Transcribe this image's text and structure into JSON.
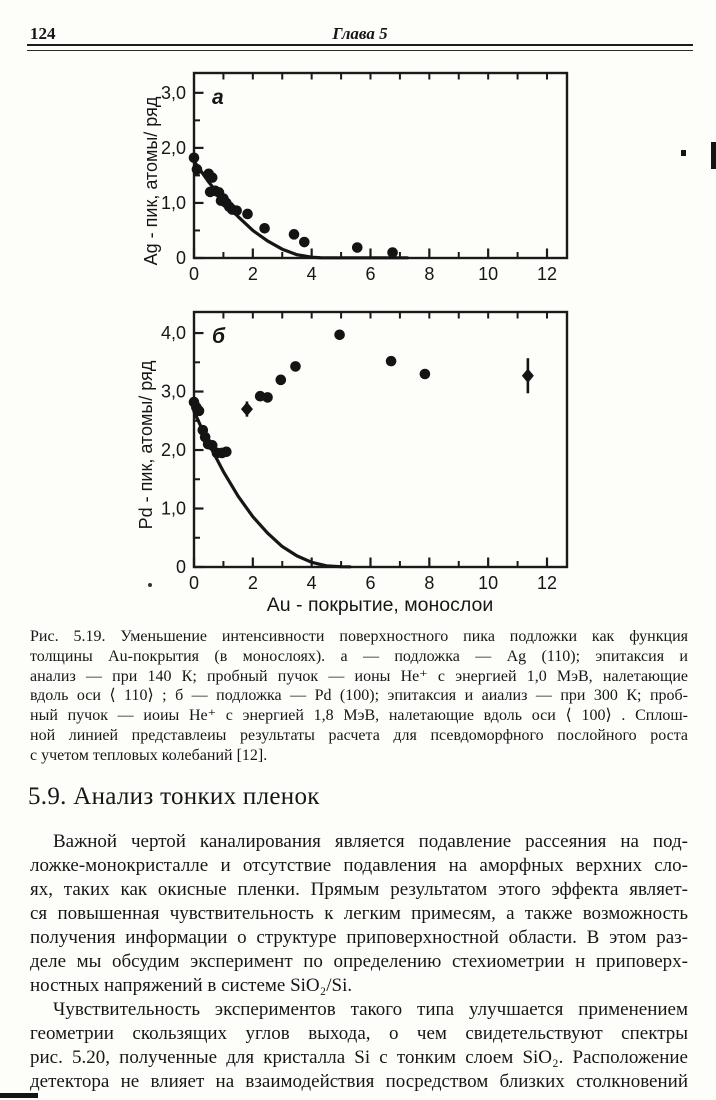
{
  "page": {
    "number": "124",
    "chapter": "Глава 5"
  },
  "colors": {
    "ink": "#1a1a1a",
    "paper": "#fdfdfa"
  },
  "chart_data": [
    {
      "type": "scatter",
      "panel_label": "а",
      "title": "",
      "xlabel": "Au - покрытие, монослои",
      "ylabel": "Ag - пик, атомы/ ряд",
      "xlim": [
        0,
        12.68
      ],
      "ylim": [
        0,
        3.36
      ],
      "grid": "off",
      "x_major_ticks": [
        0,
        2,
        4,
        6,
        8,
        10,
        12
      ],
      "x_major_tick_labels": [
        "0",
        "2",
        "4",
        "6",
        "8",
        "10",
        "12"
      ],
      "x_minor_ticks": [
        1,
        3,
        5,
        7,
        9,
        11
      ],
      "x_top_ticks": [
        1,
        2,
        3,
        4,
        5,
        6,
        7,
        8,
        9,
        10,
        11,
        12
      ],
      "y_major_ticks": [
        0,
        1,
        2,
        3
      ],
      "y_major_tick_labels": [
        "0",
        "1,0",
        "2,0",
        "3,0"
      ],
      "y_minor_ticks": [
        0.5,
        1.5,
        2.5
      ],
      "points_format": "[x, y, optional y_error]",
      "points": [
        [
          0,
          1.82
        ],
        [
          0.1,
          1.61
        ],
        [
          0.5,
          1.53
        ],
        [
          0.62,
          1.46
        ],
        [
          0.55,
          1.2
        ],
        [
          0.72,
          1.22
        ],
        [
          0.85,
          1.19
        ],
        [
          0.92,
          1.04
        ],
        [
          1.0,
          1.08
        ],
        [
          1.1,
          1.0
        ],
        [
          1.2,
          0.93
        ],
        [
          1.3,
          0.88
        ],
        [
          1.45,
          0.86
        ],
        [
          1.82,
          0.8
        ],
        [
          2.4,
          0.54
        ],
        [
          3.4,
          0.43
        ],
        [
          3.75,
          0.29
        ],
        [
          5.55,
          0.19
        ],
        [
          6.75,
          0.1
        ]
      ],
      "curve": [
        [
          0,
          1.76
        ],
        [
          0.5,
          1.38
        ],
        [
          1,
          1.04
        ],
        [
          1.5,
          0.75
        ],
        [
          2,
          0.5
        ],
        [
          2.5,
          0.31
        ],
        [
          3,
          0.16
        ],
        [
          3.5,
          0.06
        ],
        [
          4,
          0.015
        ],
        [
          4.3,
          0.005
        ],
        [
          5,
          0.003
        ],
        [
          6,
          0.003
        ],
        [
          7.25,
          0.003
        ]
      ],
      "curve_note": "сплошная линия — расчет для псевдоморфного послойного роста"
    },
    {
      "type": "scatter",
      "panel_label": "б",
      "title": "",
      "xlabel": "Au - покрытие, монослои",
      "ylabel": "Pd - пик, атомы/ ряд",
      "xlim": [
        0,
        12.68
      ],
      "ylim": [
        0,
        4.36
      ],
      "grid": "off",
      "x_major_ticks": [
        0,
        2,
        4,
        6,
        8,
        10,
        12
      ],
      "x_major_tick_labels": [
        "0",
        "2",
        "4",
        "6",
        "8",
        "10",
        "12"
      ],
      "x_minor_ticks": [
        1,
        3,
        5,
        7,
        9,
        11
      ],
      "x_top_ticks": [
        1,
        2,
        3,
        4,
        5,
        6,
        7,
        8,
        9,
        10,
        11,
        12
      ],
      "y_major_ticks": [
        0,
        1,
        2,
        3,
        4
      ],
      "y_major_tick_labels": [
        "0",
        "1,0",
        "2,0",
        "3,0",
        "4,0"
      ],
      "y_minor_ticks": [
        0.5,
        1.5,
        2.5,
        3.5
      ],
      "points_format": "[x, y, optional y_error]",
      "points": [
        [
          0,
          2.82
        ],
        [
          0.08,
          2.73
        ],
        [
          0.17,
          2.67
        ],
        [
          0.3,
          2.34
        ],
        [
          0.38,
          2.22
        ],
        [
          0.48,
          2.1
        ],
        [
          0.62,
          2.08
        ],
        [
          0.78,
          1.95
        ],
        [
          0.95,
          1.95
        ],
        [
          1.1,
          1.97
        ],
        [
          1.8,
          2.7,
          0.13
        ],
        [
          2.25,
          2.92
        ],
        [
          2.5,
          2.9
        ],
        [
          2.95,
          3.2
        ],
        [
          3.45,
          3.43
        ],
        [
          4.95,
          3.97
        ],
        [
          6.7,
          3.52
        ],
        [
          7.85,
          3.3
        ],
        [
          11.35,
          3.27,
          0.3
        ]
      ],
      "curve": [
        [
          0,
          2.66
        ],
        [
          0.5,
          2.11
        ],
        [
          1,
          1.63
        ],
        [
          1.5,
          1.21
        ],
        [
          2,
          0.86
        ],
        [
          2.5,
          0.58
        ],
        [
          3,
          0.35
        ],
        [
          3.5,
          0.19
        ],
        [
          4,
          0.08
        ],
        [
          4.5,
          0.02
        ],
        [
          5,
          0.005
        ],
        [
          5.3,
          0.003
        ]
      ],
      "curve_note": "сплошная линия — расчет для псевдоморфного послойного роста"
    }
  ],
  "caption": {
    "lines": [
      "Рис. 5.19. Уменьшение интенсивности поверхностного пика подложки как функция",
      "толщины Au-покрытия (в монослоях). а — подложка — Ag (110); эпитаксия и",
      "анализ — при 140 К; пробный пучок — ионы He⁺ с энергией 1,0 МэВ, налетающие",
      "вдоль оси ⟨ 110⟩ ; б — подложка — Pd (100); эпитаксия и аиализ — при 300 К; проб-",
      "ный пучок — иоиы He⁺ с энергией 1,8 МэВ, налетающие вдоль оси ⟨ 100⟩ . Сплош-",
      "ной линией представлеиы результаты расчета для псевдоморфного послойного роста",
      "с учетом тепловых колебаний [12]."
    ]
  },
  "section": {
    "heading": "5.9. Анализ тонких пленок"
  },
  "body": {
    "paragraphs": [
      {
        "lines": [
          "Важной чертой каналирования является подавление рассеяния на под-",
          "ложке-монокристалле и отсутствие подавления на аморфных верхних сло-",
          "ях, таких как окисные пленки. Прямым результатом этого эффекта являет-",
          "ся повышенная чувствительность к легким примесям, а также возможность",
          "получения информации о структуре приповерхностной области. В этом раз-",
          "деле мы обсудим эксперимент по определению стехиометрии н приповерх-",
          "ностных напряжений в системе SiO₂/Si."
        ]
      },
      {
        "lines": [
          "Чувствительность экспериментов такого типа улучшается применением",
          "геометрии скользящих углов выхода, о чем свидетельствуют спектры",
          "рис. 5.20, полученные для кристалла Si с тонким слоем SiO₂. Расположение",
          "детектора не влияет на взаимодействия посредством близких столкновений"
        ]
      }
    ]
  }
}
